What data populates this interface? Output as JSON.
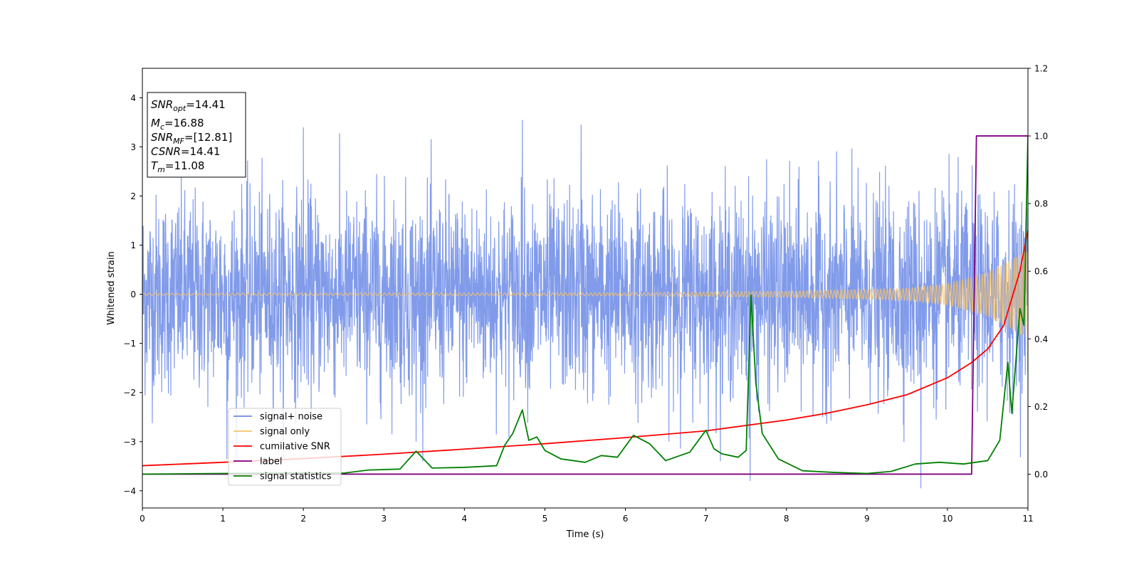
{
  "chart_data": {
    "type": "line",
    "xlabel": "Time (s)",
    "ylabel_left": "Whitened strain",
    "ylabel_right": "",
    "xlim": [
      0,
      11
    ],
    "ylim_left": [
      -4.35,
      4.6
    ],
    "ylim_right": [
      -0.1,
      1.2
    ],
    "x_ticks": [
      0,
      1,
      2,
      3,
      4,
      5,
      6,
      7,
      8,
      9,
      10,
      11
    ],
    "y_left_ticks": [
      -4,
      -3,
      -2,
      -1,
      0,
      1,
      2,
      3,
      4
    ],
    "y_right_ticks": [
      0.0,
      0.2,
      0.4,
      0.6,
      0.8,
      1.0,
      1.2
    ],
    "grid": false,
    "legend_position": "lower-left",
    "annotations": [
      {
        "base": "SNR",
        "sub": "opt",
        "rest": "=14.41"
      },
      {
        "base": "M",
        "sub": "c",
        "rest": "=16.88"
      },
      {
        "base": "SNR",
        "sub": "MF",
        "rest": "=[12.81]"
      },
      {
        "base": "CSNR",
        "sub": "",
        "rest": "=14.41"
      },
      {
        "base": "T",
        "sub": "m",
        "rest": "=11.08"
      }
    ],
    "series": [
      {
        "name": "signal+ noise",
        "axis": "left",
        "color": "#6b8ae6",
        "kind": "noise",
        "envelope": [
          [
            0,
            1.0
          ],
          [
            11,
            1.0
          ]
        ],
        "peaks": [
          [
            2.0,
            3.4
          ],
          [
            4.72,
            3.55
          ],
          [
            5.45,
            3.45
          ],
          [
            7.55,
            -3.8
          ],
          [
            9.67,
            -3.95
          ],
          [
            1.05,
            -3.35
          ],
          [
            3.4,
            -3.0
          ]
        ]
      },
      {
        "name": "signal only",
        "axis": "left",
        "color": "#f5c26b",
        "kind": "chirp",
        "amplitude_points": [
          [
            0,
            0.02
          ],
          [
            6,
            0.03
          ],
          [
            8,
            0.06
          ],
          [
            9.5,
            0.12
          ],
          [
            10,
            0.22
          ],
          [
            10.5,
            0.45
          ],
          [
            11,
            0.9
          ]
        ]
      },
      {
        "name": "cumilative SNR",
        "axis": "right",
        "color": "#ff0000",
        "x": [
          0,
          1,
          2,
          3,
          4,
          5,
          6,
          7,
          8,
          8.5,
          9,
          9.5,
          10,
          10.3,
          10.5,
          10.7,
          10.9,
          11
        ],
        "y": [
          0.025,
          0.035,
          0.046,
          0.059,
          0.074,
          0.09,
          0.108,
          0.128,
          0.16,
          0.18,
          0.205,
          0.235,
          0.285,
          0.33,
          0.37,
          0.44,
          0.6,
          0.72
        ]
      },
      {
        "name": "label",
        "axis": "right",
        "color": "#800080",
        "x": [
          0,
          10.3,
          10.36,
          11
        ],
        "y": [
          0.0,
          0.0,
          1.0,
          1.0
        ]
      },
      {
        "name": "signal statistics",
        "axis": "right",
        "color": "#008000",
        "x": [
          0,
          1,
          2,
          2.5,
          2.8,
          3.2,
          3.4,
          3.6,
          4.0,
          4.4,
          4.5,
          4.6,
          4.72,
          4.8,
          4.9,
          5.0,
          5.2,
          5.5,
          5.7,
          5.9,
          6.1,
          6.3,
          6.5,
          6.8,
          7.0,
          7.1,
          7.2,
          7.4,
          7.5,
          7.56,
          7.62,
          7.7,
          7.9,
          8.2,
          8.6,
          9.0,
          9.3,
          9.6,
          9.9,
          10.2,
          10.5,
          10.65,
          10.75,
          10.8,
          10.9,
          10.95,
          11.0
        ],
        "y": [
          0.0,
          0.002,
          0.004,
          0.003,
          0.012,
          0.015,
          0.068,
          0.018,
          0.02,
          0.025,
          0.085,
          0.12,
          0.19,
          0.1,
          0.11,
          0.07,
          0.045,
          0.035,
          0.055,
          0.05,
          0.115,
          0.09,
          0.04,
          0.065,
          0.13,
          0.075,
          0.06,
          0.05,
          0.07,
          0.53,
          0.27,
          0.12,
          0.045,
          0.01,
          0.005,
          0.002,
          0.008,
          0.03,
          0.035,
          0.03,
          0.04,
          0.1,
          0.33,
          0.18,
          0.49,
          0.44,
          1.0
        ]
      }
    ]
  }
}
